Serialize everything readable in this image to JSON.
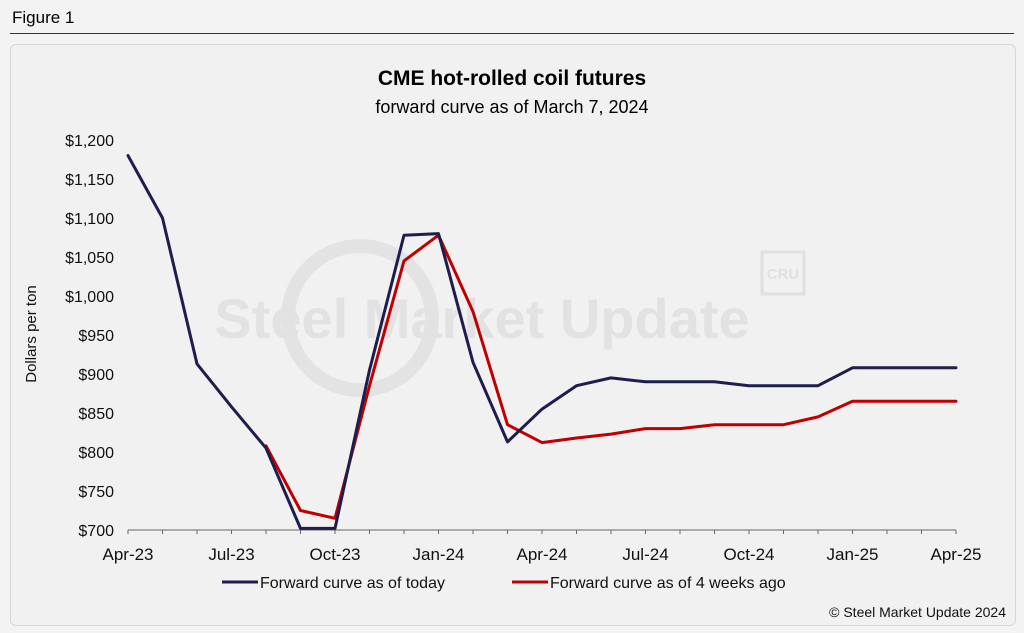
{
  "figure_label": "Figure 1",
  "copyright": "© Steel Market Update 2024",
  "watermark": "Steel Market Update",
  "colors": {
    "series_today": "#1f1d4d",
    "series_4wk": "#c00000",
    "axis": "#666666",
    "background": "#f1f1f1"
  },
  "chart_data": {
    "type": "line",
    "title": "CME hot-rolled coil futures",
    "subtitle": "forward curve as of March 7, 2024",
    "ylabel": "Dollars per ton",
    "xlabel": "",
    "ylim": [
      700,
      1200
    ],
    "y_ticks": [
      700,
      750,
      800,
      850,
      900,
      950,
      1000,
      1050,
      1100,
      1150,
      1200
    ],
    "y_tick_labels": [
      "$700",
      "$750",
      "$800",
      "$850",
      "$900",
      "$950",
      "$1,000",
      "$1,050",
      "$1,100",
      "$1,150",
      "$1,200"
    ],
    "x_ticks": [
      "Apr-23",
      "Jul-23",
      "Oct-23",
      "Jan-24",
      "Apr-24",
      "Jul-24",
      "Oct-24",
      "Jan-25",
      "Apr-25"
    ],
    "x": [
      "Apr-23",
      "May-23",
      "Jun-23",
      "Jul-23",
      "Aug-23",
      "Sep-23",
      "Oct-23",
      "Nov-23",
      "Dec-23",
      "Jan-24",
      "Feb-24",
      "Mar-24",
      "Apr-24",
      "May-24",
      "Jun-24",
      "Jul-24",
      "Aug-24",
      "Sep-24",
      "Oct-24",
      "Nov-24",
      "Dec-24",
      "Jan-25",
      "Feb-25",
      "Mar-25",
      "Apr-25"
    ],
    "legend_position": "bottom",
    "series": [
      {
        "name": "Forward curve as of today",
        "values": [
          1180,
          1100,
          913,
          858,
          805,
          702,
          702,
          905,
          1078,
          1080,
          915,
          813,
          855,
          885,
          895,
          890,
          890,
          890,
          885,
          885,
          885,
          908,
          908,
          908,
          908
        ]
      },
      {
        "name": "Forward curve as of 4 weeks ago",
        "values": [
          null,
          null,
          null,
          null,
          808,
          725,
          715,
          885,
          1045,
          1078,
          980,
          835,
          812,
          818,
          823,
          830,
          830,
          835,
          835,
          835,
          845,
          865,
          865,
          865,
          865
        ]
      }
    ]
  }
}
